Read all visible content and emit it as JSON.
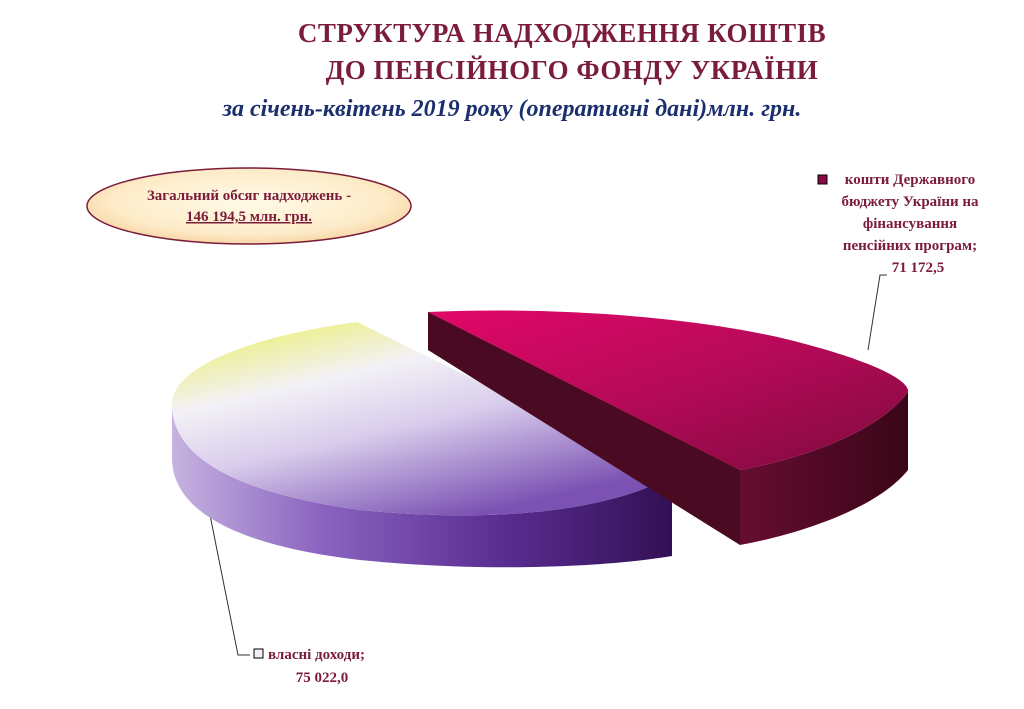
{
  "header": {
    "title_line1": "СТРУКТУРА  НАДХОДЖЕННЯ КОШТІВ",
    "title_line2": "ДО ПЕНСІЙНОГО ФОНДУ УКРАЇНИ",
    "subtitle": "за січень-квітень 2019 року (оперативні дані)млн. грн."
  },
  "total_box": {
    "label": "Загальний обсяг надходжень -",
    "value": "146 194,5 млн. грн."
  },
  "chart_data": {
    "type": "pie",
    "title": "СТРУКТУРА НАДХОДЖЕННЯ КОШТІВ ДО ПЕНСІЙНОГО ФОНДУ УКРАЇНИ",
    "subtitle": "за січень-квітень 2019 року (оперативні дані)млн. грн.",
    "unit": "млн. грн.",
    "total": 146194.5,
    "slices": [
      {
        "label_lines": [
          "кошти Державного",
          "бюджету України на",
          "фінансування",
          "пенсійних програм;"
        ],
        "value": 71172.5,
        "value_text": "71 172,5",
        "color": "#8b0a45"
      },
      {
        "label_lines": [
          "власні доходи;"
        ],
        "value": 75022.0,
        "value_text": "75 022,0",
        "color": "#6a3fa0"
      }
    ],
    "legend": "none",
    "style": "3d-exploded"
  },
  "colors": {
    "title": "#7a1c3a",
    "subtitle": "#1b2f6e",
    "budget_top": "#c4075a",
    "budget_side": "#4a0a24",
    "own_top_light": "#f0f0f8",
    "own_top_yellow": "#f0f000",
    "own_side_light": "#b7a0d8",
    "own_side_dark": "#2d1050"
  }
}
